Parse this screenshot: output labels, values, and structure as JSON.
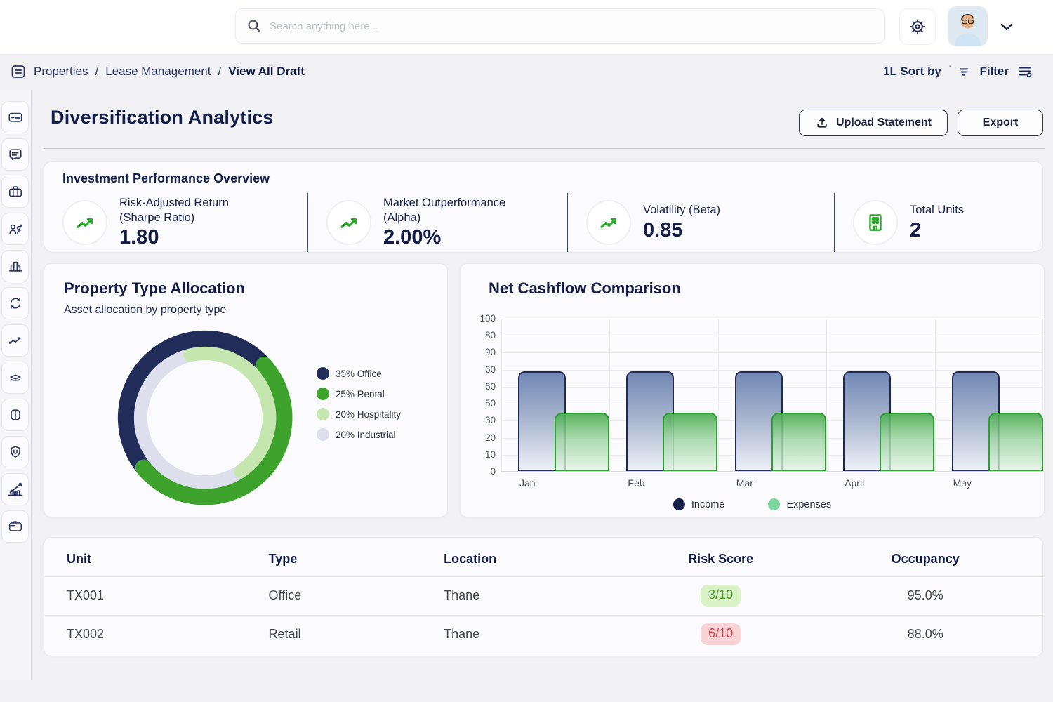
{
  "topbar": {
    "search_placeholder": "Search anything here..."
  },
  "breadcrumb": {
    "item1": "Properties",
    "item2": "Lease Management",
    "item3": "View All Draft",
    "separator": "/"
  },
  "toolbar": {
    "sort_label": "1L Sort by",
    "filter_label": "Filter"
  },
  "page": {
    "title": "Diversification Analytics",
    "upload_button": "Upload Statement",
    "export_button": "Export"
  },
  "kpis": {
    "title": "Investment Performance Overview",
    "items": [
      {
        "label_line1": "Risk-Adjusted Return",
        "label_line2": "(Sharpe Ratio)",
        "value": "1.80",
        "icon": "trend-up-icon"
      },
      {
        "label_line1": "Market Outperformance",
        "label_line2": "(Alpha)",
        "value": "2.00%",
        "icon": "trend-up-icon"
      },
      {
        "label_line1": "Volatility (Beta)",
        "label_line2": "",
        "value": "0.85",
        "icon": "trend-up-icon"
      },
      {
        "label_line1": "Total Units",
        "label_line2": "",
        "value": "2",
        "icon": "building-icon"
      }
    ]
  },
  "chart_data": [
    {
      "type": "pie",
      "donut": true,
      "title": "Property Type Allocation",
      "subtitle": "Asset allocation by property type",
      "labels": [
        "Office",
        "Rental",
        "Hospitality",
        "Industrial"
      ],
      "values": [
        35,
        25,
        20,
        20
      ],
      "colors": [
        "#222c59",
        "#3da32c",
        "#c5e6ae",
        "#dde0ec"
      ],
      "legend": [
        "35% Office",
        "25% Rental",
        "20% Hospitality",
        "20% Industrial"
      ],
      "legend_position": "right"
    },
    {
      "type": "bar",
      "title": "Net Cashflow Comparison",
      "categories": [
        "Jan",
        "Feb",
        "Mar",
        "April",
        "May"
      ],
      "series": [
        {
          "name": "Income",
          "values": [
            65,
            65,
            65,
            65,
            65
          ],
          "color": "#1e2a55",
          "legend_dot": "#16204e"
        },
        {
          "name": "Expenses",
          "values": [
            38,
            38,
            38,
            38,
            38
          ],
          "color": "#2f9e33",
          "legend_dot": "#7cd59b"
        }
      ],
      "ylim": [
        0,
        100
      ],
      "ytick_labels_top_to_bottom": [
        "100",
        "80",
        "90",
        "60",
        "60",
        "50",
        "30",
        "20",
        "10",
        "0"
      ],
      "grid": true,
      "legend_position": "bottom"
    }
  ],
  "table": {
    "headers": [
      "Unit",
      "Type",
      "Location",
      "Risk Score",
      "Occupancy"
    ],
    "rows": [
      {
        "unit": "TX001",
        "type": "Office",
        "location": "Thane",
        "risk": "3/10",
        "risk_level": "low",
        "occupancy": "95.0%"
      },
      {
        "unit": "TX002",
        "type": "Retail",
        "location": "Thane",
        "risk": "6/10",
        "risk_level": "high",
        "occupancy": "88.0%"
      }
    ]
  },
  "colors": {
    "navy": "#1a2353",
    "green": "#2ea62c",
    "risk_low_bg": "#d9f2c6",
    "risk_low_text": "#4f9b2e",
    "risk_high_bg": "#f9d3d5",
    "risk_high_text": "#cf4045"
  }
}
